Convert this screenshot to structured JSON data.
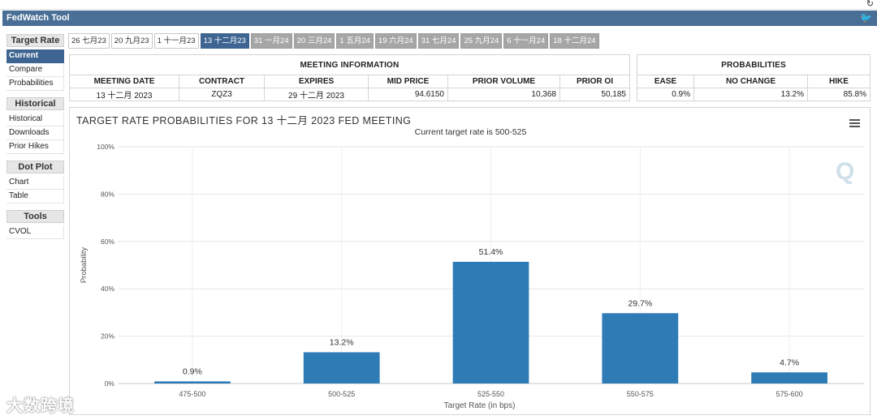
{
  "window": {
    "title": "FedWatch Tool"
  },
  "sidebar": {
    "sections": [
      {
        "header": "Target Rate",
        "items": [
          "Current",
          "Compare",
          "Probabilities"
        ],
        "active": 0
      },
      {
        "header": "Historical",
        "items": [
          "Historical",
          "Downloads",
          "Prior Hikes"
        ],
        "active": -1
      },
      {
        "header": "Dot Plot",
        "items": [
          "Chart",
          "Table"
        ],
        "active": -1
      },
      {
        "header": "Tools",
        "items": [
          "CVOL"
        ],
        "active": -1
      }
    ]
  },
  "date_tabs": [
    {
      "label": "26 七月23",
      "state": "past"
    },
    {
      "label": "20 九月23",
      "state": "past"
    },
    {
      "label": "1 十一月23",
      "state": "past"
    },
    {
      "label": "13 十二月23",
      "state": "active"
    },
    {
      "label": "31 一月24",
      "state": "future"
    },
    {
      "label": "20 三月24",
      "state": "future"
    },
    {
      "label": "1 五月24",
      "state": "future"
    },
    {
      "label": "19 六月24",
      "state": "future"
    },
    {
      "label": "31 七月24",
      "state": "future"
    },
    {
      "label": "25 九月24",
      "state": "future"
    },
    {
      "label": "6 十一月24",
      "state": "future"
    },
    {
      "label": "18 十二月24",
      "state": "future"
    }
  ],
  "meeting_info": {
    "caption": "MEETING INFORMATION",
    "headers": [
      "MEETING DATE",
      "CONTRACT",
      "EXPIRES",
      "MID PRICE",
      "PRIOR VOLUME",
      "PRIOR OI"
    ],
    "values": [
      "13 十二月 2023",
      "ZQZ3",
      "29 十二月 2023",
      "94.6150",
      "10,368",
      "50,185"
    ]
  },
  "probabilities": {
    "caption": "PROBABILITIES",
    "headers": [
      "EASE",
      "NO CHANGE",
      "HIKE"
    ],
    "values": [
      "0.9%",
      "13.2%",
      "85.8%"
    ]
  },
  "chart": {
    "title": "TARGET RATE PROBABILITIES FOR 13 十二月 2023 FED MEETING",
    "subtitle": "Current target rate is 500-525",
    "logo": "Q"
  },
  "chart_data": {
    "type": "bar",
    "title": "TARGET RATE PROBABILITIES FOR 13 十二月 2023 FED MEETING",
    "subtitle": "Current target rate is 500-525",
    "xlabel": "Target Rate (in bps)",
    "ylabel": "Probability",
    "categories": [
      "475-500",
      "500-525",
      "525-550",
      "550-575",
      "575-600"
    ],
    "values": [
      0.9,
      13.2,
      51.4,
      29.7,
      4.7
    ],
    "data_labels": [
      "0.9%",
      "13.2%",
      "51.4%",
      "29.7%",
      "4.7%"
    ],
    "yticks": [
      "0%",
      "20%",
      "40%",
      "60%",
      "80%",
      "100%"
    ],
    "ylim": [
      0,
      100
    ],
    "bar_color": "#2e7bb6",
    "grid": true
  },
  "watermark": "大数跨境",
  "colors": {
    "header_bar": "#4a6f97",
    "active": "#3e6591",
    "future_tab": "#a6a6a6",
    "bar": "#2e7bb6"
  }
}
